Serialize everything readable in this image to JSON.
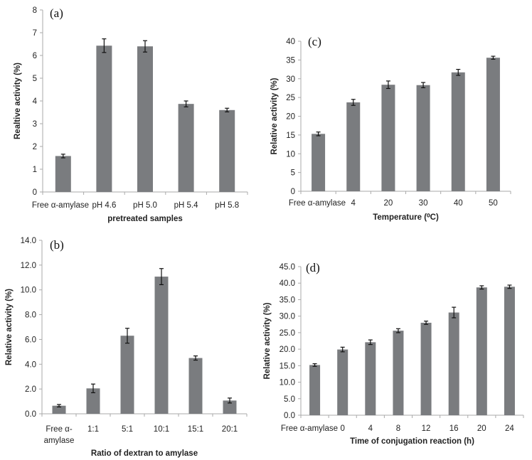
{
  "chart_data": [
    {
      "type": "bar",
      "panel_label": "(a)",
      "categories": [
        "Free α-amylase",
        "pH 4.6",
        "pH 5.0",
        "pH 5.4",
        "pH 5.8"
      ],
      "values": [
        1.58,
        6.43,
        6.4,
        3.87,
        3.6
      ],
      "errors": [
        0.08,
        0.3,
        0.25,
        0.13,
        0.08
      ],
      "xlabel": "pretreated samples",
      "ylabel": "Realtive activity (%)",
      "ylim": [
        0,
        8
      ],
      "yticks": [
        "0",
        "1",
        "2",
        "3",
        "4",
        "5",
        "6",
        "7",
        "8"
      ],
      "grid": false,
      "bar_color": "#7a7c7f"
    },
    {
      "type": "bar",
      "panel_label": "(c)",
      "categories": [
        "Free α-amylase",
        "4",
        "20",
        "30",
        "40",
        "50"
      ],
      "values": [
        15.3,
        23.7,
        28.4,
        28.3,
        31.7,
        35.6
      ],
      "errors": [
        0.5,
        0.8,
        1.0,
        0.7,
        0.8,
        0.4
      ],
      "xlabel": "Temperature (⁰C)",
      "ylabel": "Relative activity (%)",
      "ylim": [
        0,
        40
      ],
      "yticks": [
        "0",
        "5",
        "10",
        "15",
        "20",
        "25",
        "30",
        "35",
        "40"
      ],
      "grid": false,
      "bar_color": "#7a7c7f"
    },
    {
      "type": "bar",
      "panel_label": "(b)",
      "categories": [
        "Free α-\namylase",
        "1:1",
        "5:1",
        "10:1",
        "15:1",
        "20:1"
      ],
      "values": [
        0.65,
        2.05,
        6.3,
        11.07,
        4.5,
        1.07
      ],
      "errors": [
        0.1,
        0.35,
        0.6,
        0.65,
        0.17,
        0.2
      ],
      "xlabel": "Ratio of dextran to amylase",
      "ylabel": "Relative activity (%)",
      "ylim": [
        0,
        14
      ],
      "yticks": [
        "0.0",
        "2.0",
        "4.0",
        "6.0",
        "8.0",
        "10.0",
        "12.0",
        "14.0"
      ],
      "grid": false,
      "bar_color": "#7a7c7f"
    },
    {
      "type": "bar",
      "panel_label": "(d)",
      "categories": [
        "Free α-amylase",
        "0",
        "4",
        "8",
        "12",
        "16",
        "20",
        "24"
      ],
      "values": [
        15.2,
        19.9,
        22.1,
        25.6,
        28.0,
        31.1,
        38.7,
        38.9
      ],
      "errors": [
        0.4,
        0.7,
        0.7,
        0.6,
        0.5,
        1.6,
        0.5,
        0.5
      ],
      "xlabel": "Time of conjugation reaction (h)",
      "ylabel": "Relative activity (%)",
      "ylim": [
        0,
        45
      ],
      "yticks": [
        "0.0",
        "5.0",
        "10.0",
        "15.0",
        "20.0",
        "25.0",
        "30.0",
        "35.0",
        "40.0",
        "45.0"
      ],
      "grid": false,
      "bar_color": "#7a7c7f"
    }
  ]
}
